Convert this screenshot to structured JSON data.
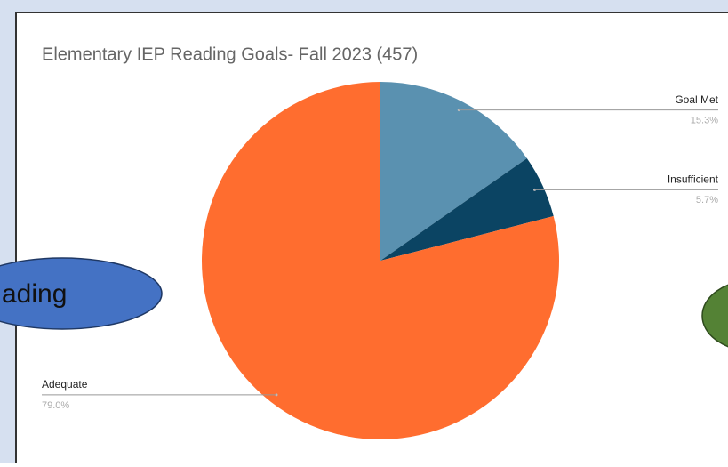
{
  "chart_data": {
    "type": "pie",
    "title": "Elementary IEP Reading Goals- Fall 2023 (457)",
    "categories": [
      "Goal Met",
      "Insufficient",
      "Adequate"
    ],
    "values": [
      15.3,
      5.7,
      79.0
    ],
    "value_labels": [
      "15.3%",
      "5.7%",
      "79.0%"
    ],
    "colors": [
      "#5a91b0",
      "#0b4463",
      "#ff6d2f"
    ]
  },
  "callout": "ading"
}
